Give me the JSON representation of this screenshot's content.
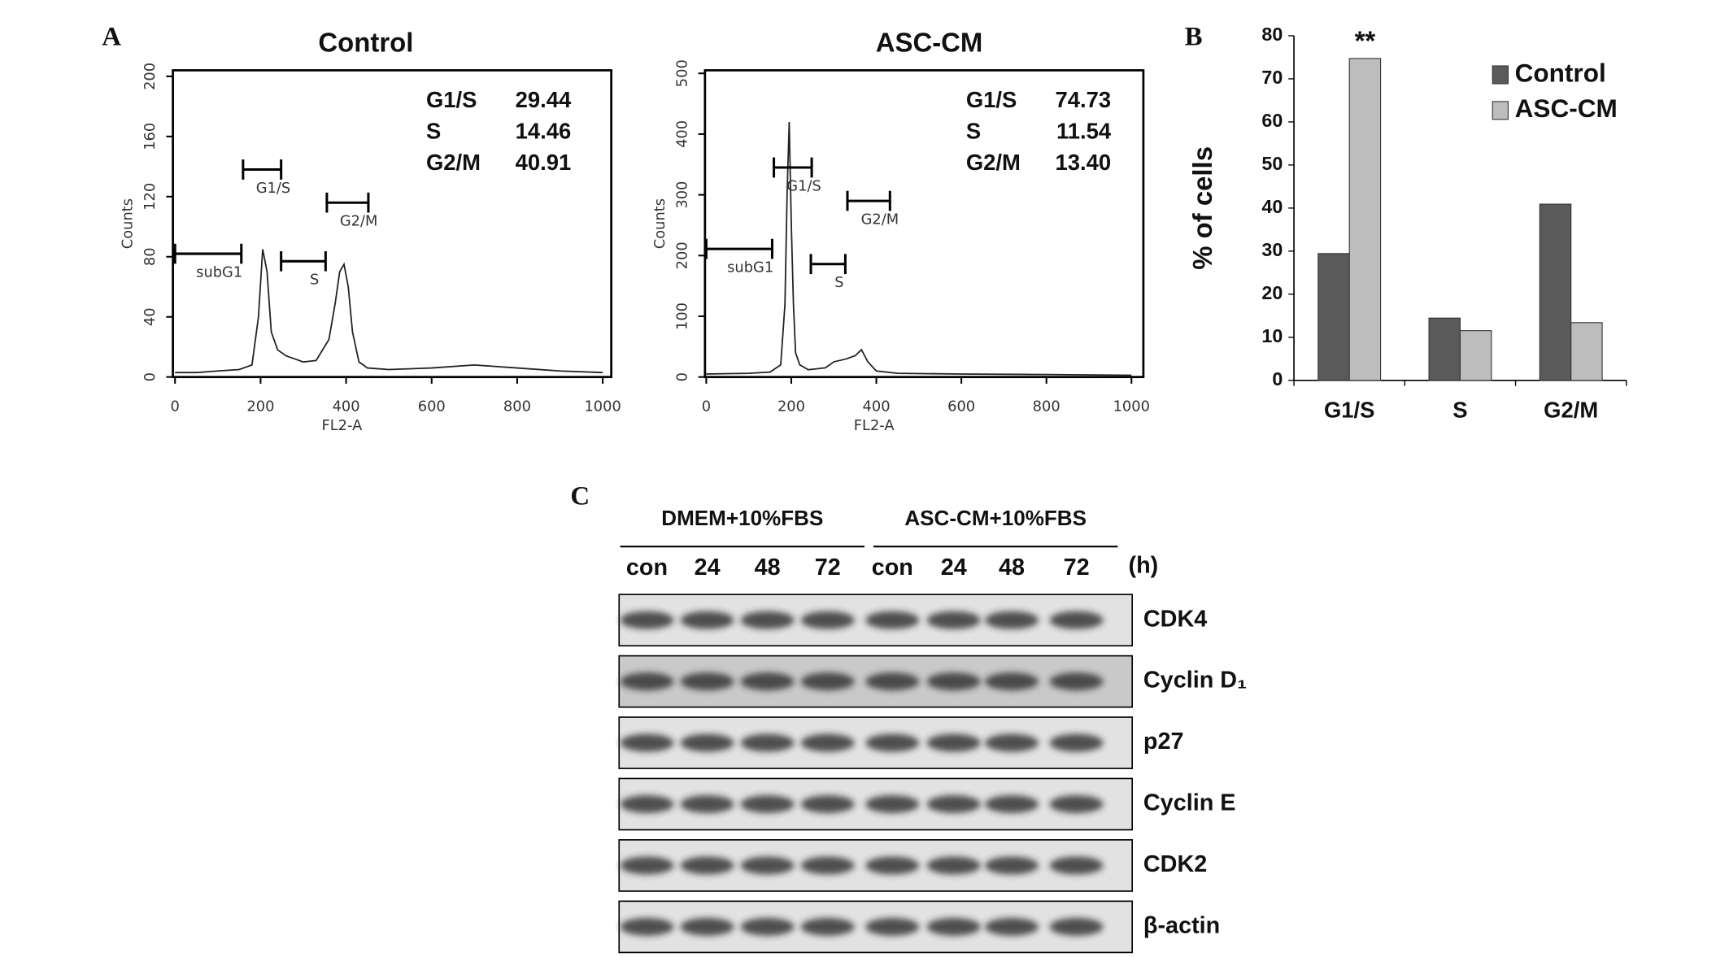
{
  "panels": [
    "A",
    "B",
    "C"
  ],
  "chart_data": [
    {
      "type": "line",
      "title": "Control",
      "x": [
        0,
        50,
        100,
        150,
        180,
        195,
        205,
        215,
        225,
        240,
        260,
        280,
        300,
        330,
        360,
        375,
        385,
        395,
        405,
        415,
        430,
        450,
        500,
        600,
        700,
        800,
        900,
        1000
      ],
      "values": [
        3,
        3,
        4,
        5,
        8,
        40,
        85,
        70,
        30,
        18,
        14,
        12,
        10,
        11,
        25,
        50,
        70,
        75,
        60,
        30,
        10,
        6,
        5,
        6,
        8,
        6,
        4,
        3
      ],
      "color": "#222222",
      "xlim": [
        -5,
        1020
      ],
      "xticks": [
        0,
        200,
        400,
        600,
        800,
        1000
      ],
      "ylim": [
        0,
        204
      ],
      "yticks": [
        0,
        40,
        80,
        120,
        160,
        200
      ],
      "xlabel": "FL2-A",
      "ylabel": "Counts",
      "stats": {
        "labels": [
          "G1/S",
          "S",
          "G2/M"
        ],
        "values": [
          29.44,
          14.46,
          40.91
        ]
      },
      "gates": [
        {
          "label": "subG1",
          "x": [
            0,
            155
          ],
          "y": 82
        },
        {
          "label": "G1/S",
          "x": [
            159,
            248
          ],
          "y": 138
        },
        {
          "label": "S",
          "x": [
            248,
            352
          ],
          "y": 77
        },
        {
          "label": "G2/M",
          "x": [
            355,
            452
          ],
          "y": 116
        }
      ]
    },
    {
      "type": "line",
      "title": "ASC-CM",
      "x": [
        0,
        100,
        150,
        175,
        185,
        190,
        195,
        200,
        205,
        210,
        220,
        240,
        280,
        300,
        330,
        350,
        365,
        380,
        400,
        450,
        600,
        800,
        1000
      ],
      "values": [
        5,
        6,
        8,
        20,
        120,
        300,
        420,
        250,
        120,
        40,
        20,
        12,
        15,
        25,
        30,
        35,
        45,
        25,
        10,
        6,
        5,
        4,
        3
      ],
      "color": "#222222",
      "xlim": [
        -3,
        1028
      ],
      "xticks": [
        0,
        200,
        400,
        600,
        800,
        1000
      ],
      "ylim": [
        0,
        505
      ],
      "yticks": [
        0,
        100,
        200,
        300,
        400,
        500
      ],
      "xlabel": "FL2-A",
      "ylabel": "Counts",
      "stats": {
        "labels": [
          "G1/S",
          "S",
          "G2/M"
        ],
        "values": [
          74.73,
          11.54,
          13.4
        ],
        "value_labels": [
          "74.73",
          "11.54",
          "13.40"
        ]
      },
      "gates": [
        {
          "label": "subG1",
          "x": [
            0,
            155
          ],
          "y": 211
        },
        {
          "label": "G1/S",
          "x": [
            159,
            248
          ],
          "y": 345
        },
        {
          "label": "S",
          "x": [
            246,
            327
          ],
          "y": 186
        },
        {
          "label": "G2/M",
          "x": [
            332,
            432
          ],
          "y": 290
        }
      ]
    },
    {
      "type": "bar",
      "categories": [
        "G1/S",
        "S",
        "G2/M"
      ],
      "series": [
        {
          "name": "Control",
          "color": "#5a5a5a",
          "values": [
            29.44,
            14.46,
            40.91
          ]
        },
        {
          "name": "ASC-CM",
          "color": "#bdbdbd",
          "values": [
            74.73,
            11.54,
            13.4
          ]
        }
      ],
      "ylabel": "% of cells",
      "ylim": [
        0,
        80
      ],
      "yticks": [
        0,
        10,
        20,
        30,
        40,
        50,
        60,
        70,
        80
      ],
      "annotation": "**",
      "legend": "upper right"
    }
  ],
  "blot": {
    "groups": [
      "DMEM+10%FBS",
      "ASC-CM+10%FBS"
    ],
    "lanes": [
      "con",
      "24",
      "48",
      "72",
      "con",
      "24",
      "48",
      "72"
    ],
    "unit": "(h)",
    "rows": [
      "CDK4",
      "Cyclin D₁",
      "p27",
      "Cyclin E",
      "CDK2",
      "β-actin"
    ]
  }
}
